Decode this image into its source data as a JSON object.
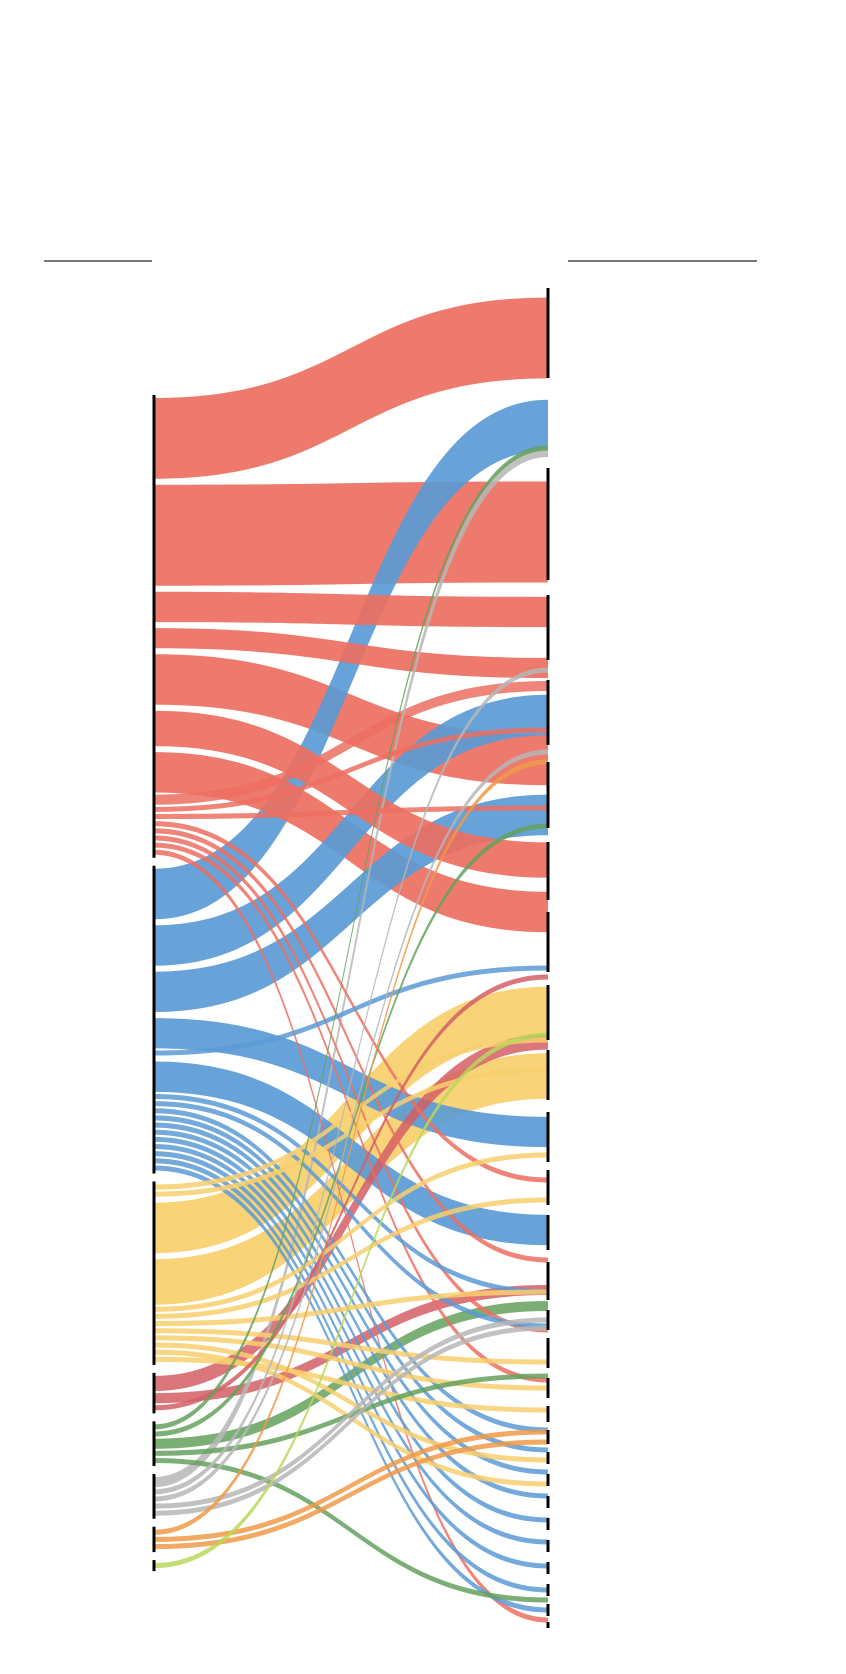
{
  "diagram": {
    "type": "sankey",
    "colors": {
      "red": "#ec6f61",
      "blue": "#5a9ad5",
      "yellow": "#f8cf6d",
      "crimson": "#d35f66",
      "green": "#65a15d",
      "gray": "#b6b6b6",
      "orange": "#ee9a48",
      "lime": "#b8d85a",
      "axis": "#000000",
      "header_rule": "#777777"
    },
    "left_groups": [
      {
        "id": "L-red",
        "color": "red"
      },
      {
        "id": "L-blue",
        "color": "blue"
      },
      {
        "id": "L-yellow",
        "color": "yellow"
      },
      {
        "id": "L-crimson",
        "color": "crimson"
      },
      {
        "id": "L-green",
        "color": "green"
      },
      {
        "id": "L-gray",
        "color": "gray"
      },
      {
        "id": "L-orange",
        "color": "orange"
      },
      {
        "id": "L-lime",
        "color": "lime"
      }
    ],
    "flows": [
      {
        "color": "red",
        "value": 16
      },
      {
        "color": "red",
        "value": 20
      },
      {
        "color": "red",
        "value": 6
      },
      {
        "color": "red",
        "value": 4
      },
      {
        "color": "red",
        "value": 10
      },
      {
        "color": "red",
        "value": 7
      },
      {
        "color": "red",
        "value": 8
      },
      {
        "color": "red",
        "value": 2
      },
      {
        "color": "red",
        "value": 1
      },
      {
        "color": "red",
        "value": 1
      },
      {
        "color": "red",
        "value": 1
      },
      {
        "color": "red",
        "value": 1
      },
      {
        "color": "red",
        "value": 1
      },
      {
        "color": "red",
        "value": 1
      },
      {
        "color": "red",
        "value": 1
      },
      {
        "color": "blue",
        "value": 10
      },
      {
        "color": "blue",
        "value": 8
      },
      {
        "color": "blue",
        "value": 8
      },
      {
        "color": "blue",
        "value": 6
      },
      {
        "color": "blue",
        "value": 1
      },
      {
        "color": "blue",
        "value": 6
      },
      {
        "color": "blue",
        "value": 1
      },
      {
        "color": "blue",
        "value": 1
      },
      {
        "color": "blue",
        "value": 1
      },
      {
        "color": "blue",
        "value": 1
      },
      {
        "color": "blue",
        "value": 1
      },
      {
        "color": "blue",
        "value": 1
      },
      {
        "color": "blue",
        "value": 1
      },
      {
        "color": "blue",
        "value": 1
      },
      {
        "color": "blue",
        "value": 1
      },
      {
        "color": "blue",
        "value": 1
      },
      {
        "color": "blue",
        "value": 1
      },
      {
        "color": "yellow",
        "value": 1
      },
      {
        "color": "yellow",
        "value": 1
      },
      {
        "color": "yellow",
        "value": 10
      },
      {
        "color": "yellow",
        "value": 9
      },
      {
        "color": "yellow",
        "value": 1
      },
      {
        "color": "yellow",
        "value": 1
      },
      {
        "color": "yellow",
        "value": 1
      },
      {
        "color": "yellow",
        "value": 1
      },
      {
        "color": "yellow",
        "value": 1
      },
      {
        "color": "yellow",
        "value": 1
      },
      {
        "color": "yellow",
        "value": 1
      },
      {
        "color": "yellow",
        "value": 1
      },
      {
        "color": "crimson",
        "value": 3
      },
      {
        "color": "crimson",
        "value": 2
      },
      {
        "color": "crimson",
        "value": 1
      },
      {
        "color": "green",
        "value": 1
      },
      {
        "color": "green",
        "value": 1
      },
      {
        "color": "green",
        "value": 2
      },
      {
        "color": "green",
        "value": 1
      },
      {
        "color": "green",
        "value": 1
      },
      {
        "color": "gray",
        "value": 2
      },
      {
        "color": "gray",
        "value": 1
      },
      {
        "color": "gray",
        "value": 1
      },
      {
        "color": "gray",
        "value": 1
      },
      {
        "color": "gray",
        "value": 1
      },
      {
        "color": "orange",
        "value": 1
      },
      {
        "color": "orange",
        "value": 1
      },
      {
        "color": "orange",
        "value": 1
      },
      {
        "color": "lime",
        "value": 1
      }
    ]
  }
}
